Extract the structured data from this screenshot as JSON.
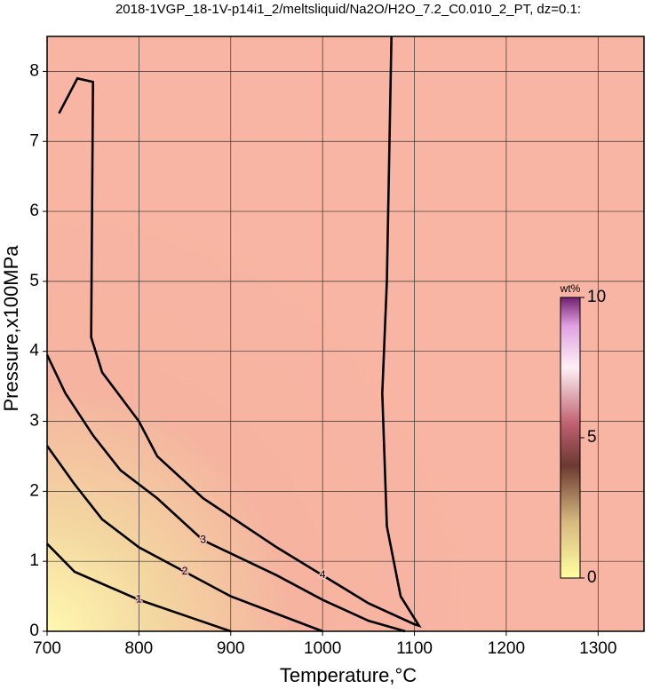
{
  "chart_data": {
    "type": "contour",
    "title": "2018-1VGP_18-1V-p14i1_2/meltsliquid/Na2O/H2O_7.2_C0.010_2_PT, dz=0.1:",
    "x_label": "Temperature,°C",
    "y_label": "Pressure,x100MPa",
    "xlim": [
      700,
      1350
    ],
    "xticks": [
      700,
      800,
      900,
      1000,
      1100,
      1200,
      1300
    ],
    "ylim": [
      0,
      8.5
    ],
    "yticks": [
      0,
      1,
      2,
      3,
      4,
      5,
      6,
      7,
      8
    ],
    "grid": true,
    "colorbar": {
      "label": "wt%",
      "lim": [
        0,
        10
      ],
      "ticks": [
        0,
        5,
        10
      ]
    },
    "contours": [
      {
        "level": 1,
        "x": [
          700,
          730,
          800,
          860,
          900
        ],
        "y": [
          1.25,
          0.85,
          0.45,
          0.18,
          0
        ]
      },
      {
        "level": 2,
        "x": [
          700,
          730,
          760,
          800,
          850,
          900,
          960,
          1000
        ],
        "y": [
          2.65,
          2.1,
          1.6,
          1.2,
          0.85,
          0.5,
          0.2,
          0
        ]
      },
      {
        "level": 3,
        "x": [
          700,
          720,
          750,
          780,
          820,
          870,
          950,
          1000,
          1050,
          1090
        ],
        "y": [
          3.95,
          3.4,
          2.8,
          2.3,
          1.9,
          1.3,
          0.8,
          0.45,
          0.15,
          0
        ]
      },
      {
        "level": 4,
        "x": [
          713,
          733,
          750,
          748,
          760,
          800,
          820,
          870,
          950,
          1000,
          1050,
          1100,
          1105,
          1085,
          1070,
          1065,
          1070,
          1075
        ],
        "y": [
          7.4,
          7.9,
          7.85,
          4.2,
          3.7,
          3.0,
          2.5,
          1.9,
          1.2,
          0.8,
          0.4,
          0.1,
          0.08,
          0.5,
          1.5,
          3.4,
          5,
          8.5
        ]
      }
    ]
  }
}
